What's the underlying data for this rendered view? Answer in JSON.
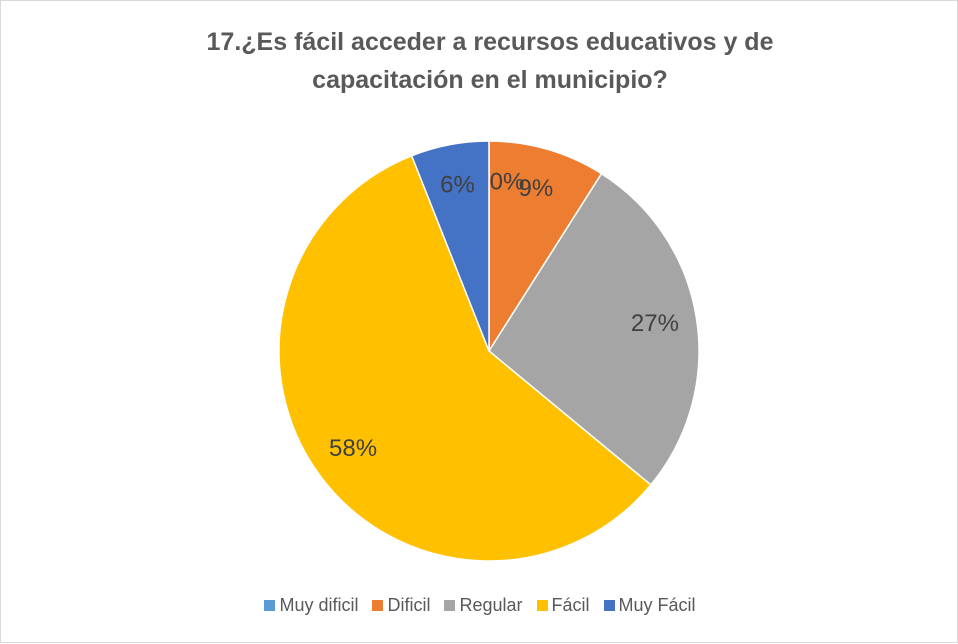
{
  "chart_data": {
    "type": "pie",
    "title": "17.¿Es fácil acceder a recursos educativos y de capacitación en el municipio?",
    "categories": [
      "Muy dificil",
      "Dificil",
      "Regular",
      "Fácil",
      "Muy Fácil"
    ],
    "values": [
      0,
      9,
      27,
      58,
      6
    ],
    "value_labels": [
      "0%",
      "9%",
      "27%",
      "58%",
      "6%"
    ],
    "colors": [
      "#5b9bd5",
      "#ed7d31",
      "#a5a5a5",
      "#ffc000",
      "#4472c4"
    ],
    "legend": "bottom"
  }
}
